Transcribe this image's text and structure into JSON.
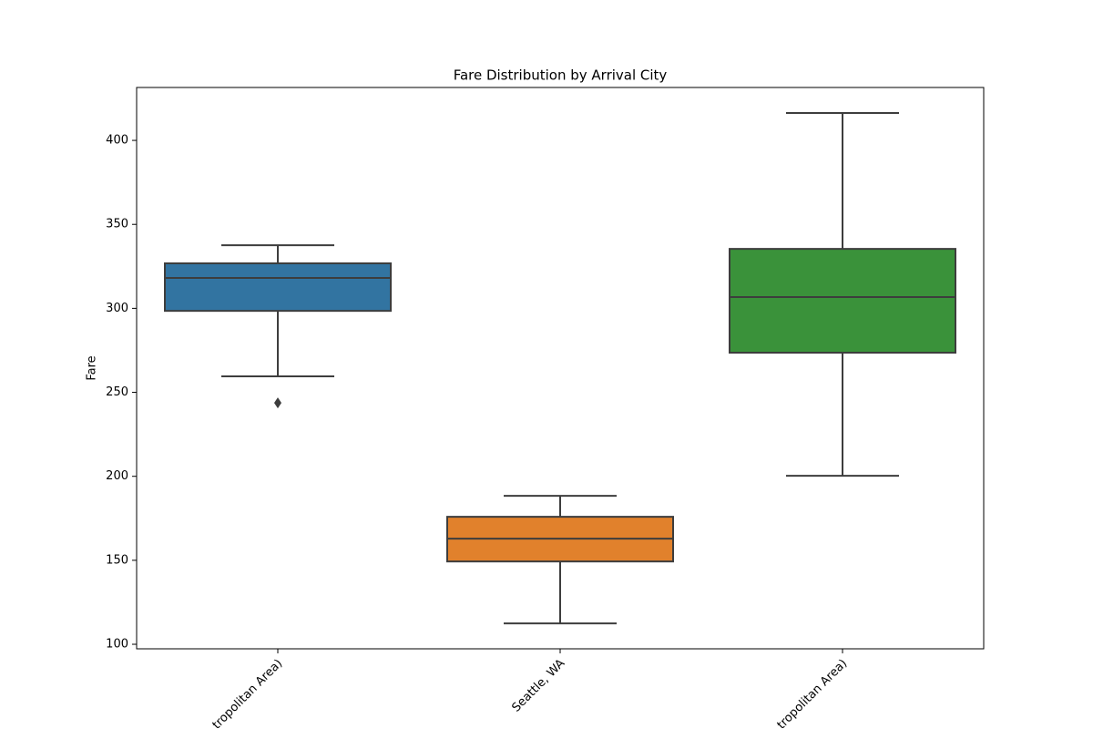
{
  "chart_data": {
    "type": "box",
    "title": "Fare Distribution by Arrival City",
    "y_label": "Fare",
    "categories": [
      "tropolitan Area)",
      "Seattle, WA",
      "tropolitan Area)"
    ],
    "boxes": [
      {
        "color": "#3274a1",
        "whislo": 259.5,
        "q1": 298.5,
        "med": 318.1,
        "q3": 326.8,
        "whishi": 337.6,
        "fliers": [
          243.7
        ]
      },
      {
        "color": "#e1812c",
        "whislo": 112.4,
        "q1": 149.3,
        "med": 162.9,
        "q3": 175.9,
        "whishi": 188.4,
        "fliers": []
      },
      {
        "color": "#3a923a",
        "whislo": 200.3,
        "q1": 273.6,
        "med": 306.7,
        "q3": 335.4,
        "whishi": 416.3,
        "fliers": []
      }
    ],
    "ylim": [
      97.3,
      431.5
    ],
    "yticks": [
      100,
      150,
      200,
      250,
      300,
      350,
      400
    ]
  }
}
